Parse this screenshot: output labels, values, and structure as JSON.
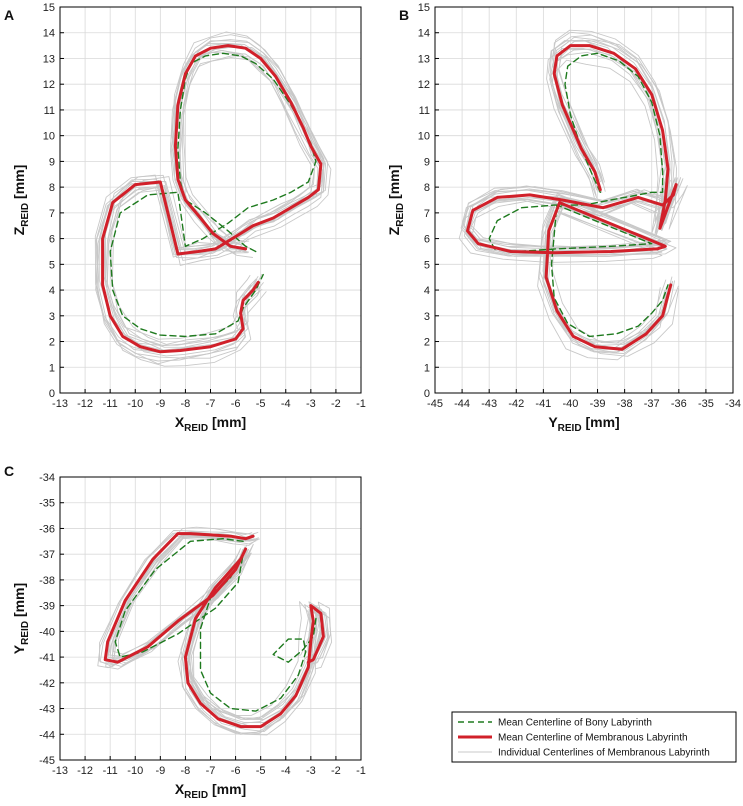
{
  "chart_data": [
    {
      "panel": "A",
      "type": "line",
      "xlabel_main": "X",
      "xlabel_sub": "REID",
      "xlabel_unit": " [mm]",
      "ylabel_main": "Z",
      "ylabel_sub": "REID",
      "ylabel_unit": " [mm]",
      "xlim": [
        -13,
        -1
      ],
      "ylim": [
        0,
        15
      ],
      "xticks": [
        -13,
        -12,
        -11,
        -10,
        -9,
        -8,
        -7,
        -6,
        -5,
        -4,
        -3,
        -2,
        -1
      ],
      "yticks": [
        0,
        1,
        2,
        3,
        4,
        5,
        6,
        7,
        8,
        9,
        10,
        11,
        12,
        13,
        14,
        15
      ],
      "grid": true,
      "series": [
        {
          "name": "Mean Centerline of Bony Labyrinth",
          "style": "dashed",
          "color": "#1e7a1e",
          "x": [
            -5.2,
            -5.6,
            -6.3,
            -7.2,
            -8.0,
            -8.2,
            -8.3,
            -8.2,
            -8.0,
            -7.8,
            -7.2,
            -6.5,
            -5.8,
            -5.2,
            -4.5,
            -3.8,
            -3.3,
            -3.0,
            -2.8,
            -3.1,
            -3.8,
            -4.5,
            -5.5,
            -6.3,
            -7.3,
            -8.0,
            -8.3,
            -9.5,
            -10.6,
            -11.0,
            -10.9,
            -10.5,
            -9.8,
            -9.0,
            -8.0,
            -6.8,
            -5.9,
            -5.7,
            -5.2,
            -4.9
          ],
          "y": [
            5.5,
            5.7,
            6.3,
            7.0,
            7.5,
            8.2,
            9.5,
            11.0,
            12.2,
            12.8,
            13.1,
            13.2,
            13.1,
            12.8,
            12.2,
            11.2,
            10.3,
            9.7,
            9.0,
            8.2,
            7.8,
            7.5,
            7.2,
            6.6,
            6.0,
            5.7,
            7.8,
            7.7,
            7.0,
            5.5,
            4.0,
            3.0,
            2.5,
            2.25,
            2.2,
            2.3,
            2.8,
            3.3,
            4.0,
            4.6
          ]
        },
        {
          "name": "Mean Centerline of Membranous Labyrinth",
          "style": "solid",
          "color": "#d1202a",
          "x": [
            -5.6,
            -6.2,
            -6.9,
            -7.4,
            -8.0,
            -8.3,
            -8.4,
            -8.3,
            -8.0,
            -7.6,
            -7.0,
            -6.3,
            -5.6,
            -5.0,
            -4.4,
            -3.8,
            -3.3,
            -3.0,
            -2.6,
            -2.7,
            -3.1,
            -3.8,
            -4.5,
            -5.3,
            -5.8,
            -6.3,
            -6.8,
            -7.5,
            -8.3,
            -9.0,
            -10.0,
            -10.9,
            -11.3,
            -11.3,
            -11.0,
            -10.5,
            -9.8,
            -9.0,
            -8.2,
            -7.0,
            -6.0,
            -5.7,
            -5.8,
            -5.7,
            -5.3,
            -5.1
          ],
          "y": [
            5.6,
            5.7,
            6.2,
            6.8,
            7.5,
            8.3,
            9.6,
            11.2,
            12.4,
            13.1,
            13.4,
            13.5,
            13.4,
            13.0,
            12.3,
            11.3,
            10.3,
            9.6,
            8.9,
            7.9,
            7.6,
            7.2,
            6.8,
            6.5,
            6.2,
            5.9,
            5.6,
            5.5,
            5.4,
            8.2,
            8.1,
            7.4,
            6.0,
            4.2,
            3.0,
            2.2,
            1.8,
            1.6,
            1.65,
            1.8,
            2.1,
            2.5,
            3.1,
            3.6,
            4.0,
            4.3
          ]
        },
        {
          "name": "Individual Centerlines of Membranous Labyrinth",
          "style": "thin",
          "color": "#c8c8c8"
        }
      ]
    },
    {
      "panel": "B",
      "type": "line",
      "xlabel_main": "Y",
      "xlabel_sub": "REID",
      "xlabel_unit": " [mm]",
      "ylabel_main": "Z",
      "ylabel_sub": "REID",
      "ylabel_unit": " [mm]",
      "xlim": [
        -45,
        -34
      ],
      "ylim": [
        0,
        15
      ],
      "xticks": [
        -45,
        -44,
        -43,
        -42,
        -41,
        -40,
        -39,
        -38,
        -37,
        -36,
        -35,
        -34
      ],
      "yticks": [
        0,
        1,
        2,
        3,
        4,
        5,
        6,
        7,
        8,
        9,
        10,
        11,
        12,
        13,
        14,
        15
      ],
      "grid": true,
      "series": [
        {
          "name": "Mean Centerline of Bony Labyrinth",
          "style": "dashed",
          "color": "#1e7a1e",
          "x": [
            -38.9,
            -39.2,
            -39.6,
            -40.0,
            -40.2,
            -40.1,
            -39.6,
            -39.0,
            -38.2,
            -37.5,
            -37.0,
            -36.7,
            -36.6,
            -36.6,
            -37.0,
            -38.0,
            -39.5,
            -40.6,
            -41.8,
            -42.7,
            -43.0,
            -42.8,
            -42.0,
            -40.5,
            -38.5,
            -37.0,
            -40.5,
            -40.7,
            -40.6,
            -40.1,
            -39.3,
            -38.3,
            -37.5,
            -37.0,
            -36.6,
            -36.4
          ],
          "y": [
            7.8,
            8.5,
            9.5,
            10.8,
            12.0,
            12.7,
            13.1,
            13.2,
            12.9,
            12.3,
            11.3,
            10.0,
            8.6,
            7.8,
            7.8,
            7.6,
            7.3,
            7.3,
            7.2,
            6.7,
            6.0,
            5.6,
            5.5,
            5.6,
            5.7,
            5.8,
            7.3,
            5.0,
            3.7,
            2.7,
            2.2,
            2.3,
            2.6,
            3.1,
            3.6,
            4.2
          ]
        },
        {
          "name": "Mean Centerline of Membranous Labyrinth",
          "style": "solid",
          "color": "#d1202a",
          "x": [
            -38.9,
            -39.1,
            -39.6,
            -40.3,
            -40.6,
            -40.5,
            -40.0,
            -39.3,
            -38.4,
            -37.6,
            -37.0,
            -36.6,
            -36.4,
            -36.5,
            -36.7,
            -36.1,
            -36.2,
            -36.6,
            -37.5,
            -38.8,
            -40.3,
            -41.5,
            -42.7,
            -43.6,
            -43.8,
            -43.4,
            -42.2,
            -40.6,
            -38.5,
            -36.8,
            -36.5,
            -40.4,
            -40.8,
            -40.9,
            -40.5,
            -39.9,
            -39.1,
            -38.1,
            -37.2,
            -36.6,
            -36.3
          ],
          "y": [
            7.9,
            8.6,
            9.5,
            11.2,
            12.4,
            13.1,
            13.5,
            13.5,
            13.2,
            12.6,
            11.6,
            10.2,
            8.7,
            7.5,
            6.4,
            8.1,
            7.7,
            7.3,
            7.6,
            7.2,
            7.5,
            7.7,
            7.6,
            7.1,
            6.3,
            5.8,
            5.5,
            5.45,
            5.5,
            5.6,
            5.7,
            7.4,
            6.3,
            4.5,
            3.2,
            2.2,
            1.8,
            1.7,
            2.3,
            3.0,
            4.2
          ]
        },
        {
          "name": "Individual Centerlines of Membranous Labyrinth",
          "style": "thin",
          "color": "#c8c8c8"
        }
      ]
    },
    {
      "panel": "C",
      "type": "line",
      "xlabel_main": "X",
      "xlabel_sub": "REID",
      "xlabel_unit": " [mm]",
      "ylabel_main": "Y",
      "ylabel_sub": "REID",
      "ylabel_unit": " [mm]",
      "xlim": [
        -13,
        -1
      ],
      "ylim": [
        -45,
        -34
      ],
      "xticks": [
        -13,
        -12,
        -11,
        -10,
        -9,
        -8,
        -7,
        -6,
        -5,
        -4,
        -3,
        -2,
        -1
      ],
      "yticks": [
        -45,
        -44,
        -43,
        -42,
        -41,
        -40,
        -39,
        -38,
        -37,
        -36,
        -35,
        -34
      ],
      "grid": true,
      "series": [
        {
          "name": "Mean Centerline of Bony Labyrinth",
          "style": "dashed",
          "color": "#1e7a1e",
          "x": [
            -5.7,
            -6.5,
            -7.8,
            -9.2,
            -10.4,
            -10.8,
            -10.6,
            -9.7,
            -8.3,
            -6.8,
            -5.9,
            -5.7,
            -6.2,
            -7.0,
            -7.4,
            -7.4,
            -7.0,
            -6.2,
            -5.2,
            -4.2,
            -3.5,
            -3.2,
            -3.3,
            -3.9,
            -4.5,
            -3.9,
            -3.3,
            -2.9,
            -2.8
          ],
          "y": [
            -36.5,
            -36.4,
            -36.5,
            -37.6,
            -39.2,
            -40.4,
            -41.0,
            -40.8,
            -40.1,
            -39.1,
            -38.1,
            -37.0,
            -37.9,
            -38.7,
            -39.9,
            -41.5,
            -42.4,
            -43.0,
            -43.1,
            -42.6,
            -41.7,
            -40.8,
            -40.3,
            -40.3,
            -40.9,
            -41.2,
            -40.7,
            -40.2,
            -39.5
          ]
        },
        {
          "name": "Mean Centerline of Membranous Labyrinth",
          "style": "solid",
          "color": "#d1202a",
          "x": [
            -5.3,
            -5.6,
            -6.2,
            -7.0,
            -7.8,
            -8.3,
            -9.3,
            -10.4,
            -11.1,
            -11.2,
            -10.7,
            -9.5,
            -8.3,
            -6.9,
            -6.0,
            -5.6,
            -5.8,
            -6.8,
            -7.6,
            -8.0,
            -7.9,
            -7.4,
            -6.7,
            -5.8,
            -5.0,
            -4.2,
            -3.6,
            -3.1,
            -3.0,
            -2.9,
            -3.0,
            -2.6,
            -2.5,
            -2.9,
            -3.1
          ],
          "y": [
            -36.3,
            -36.4,
            -36.3,
            -36.25,
            -36.2,
            -36.2,
            -37.2,
            -38.8,
            -40.4,
            -41.1,
            -41.2,
            -40.6,
            -39.6,
            -38.6,
            -37.6,
            -36.8,
            -37.2,
            -38.3,
            -39.5,
            -41.0,
            -42.0,
            -42.8,
            -43.4,
            -43.7,
            -43.7,
            -43.2,
            -42.5,
            -41.4,
            -40.4,
            -39.6,
            -39.0,
            -39.3,
            -40.2,
            -41.1,
            -41.2
          ]
        },
        {
          "name": "Individual Centerlines of Membranous Labyrinth",
          "style": "thin",
          "color": "#c8c8c8"
        }
      ]
    }
  ],
  "legend": {
    "items": [
      "Mean Centerline of Bony Labyrinth",
      "Mean Centerline of Membranous Labyrinth",
      "Individual Centerlines of Membranous Labyrinth"
    ],
    "position": "bottom-right"
  },
  "colors": {
    "bony": "#1e7a1e",
    "membranous": "#d1202a",
    "individual": "#c8c8c8",
    "grid": "#d9d9d9"
  }
}
